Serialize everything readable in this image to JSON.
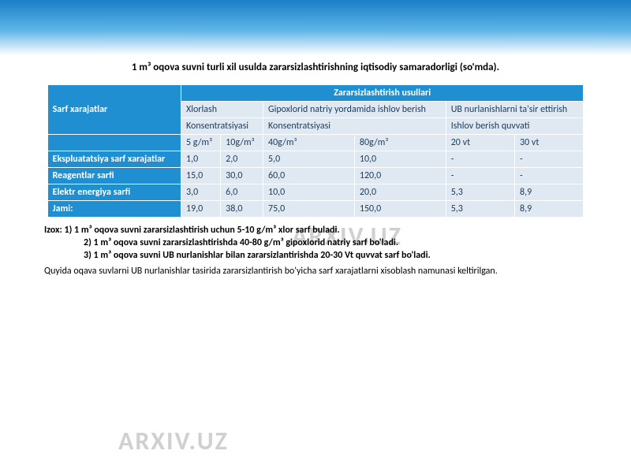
{
  "watermark": "ARXIV.UZ",
  "title": "1 m³  oqova suvni turli xil  usulda zararsizlashtirishning iqtisodiy samaradorligi  (so'mda).",
  "table": {
    "header_main": "Zararsizlashtirish usullari",
    "row_label": "Sarf xarajatlar",
    "methods": {
      "m1": "Xlorlash",
      "m2": "Gipoxlorid natriy yordamida ishlov berish",
      "m3": "UB nurlanishlarni ta'sir ettirish",
      "sub1": "Konsentratsiyasi",
      "sub2": "Konsentratsiyasi",
      "sub3": "Ishlov berish quvvati",
      "c1": "5 g/m³",
      "c2": "10g/m³",
      "c3": "40g/m³",
      "c4": "80g/m³",
      "c5": "20 vt",
      "c6": "30 vt"
    },
    "rows": [
      {
        "label": "Ekspluatatsiya  sarf xarajatlar",
        "v": [
          "1,0",
          "2,0",
          "5,0",
          "10,0",
          "-",
          "-"
        ]
      },
      {
        "label": "Reagentlar sarfi",
        "v": [
          "15,0",
          "30,0",
          "60,0",
          "120,0",
          "-",
          "-"
        ]
      },
      {
        "label": "Elektr energiya sarfi",
        "v": [
          "3,0",
          "6,0",
          "10,0",
          "20,0",
          "5,3",
          "8,9"
        ]
      },
      {
        "label": "Jami:",
        "v": [
          "19,0",
          "38,0",
          "75,0",
          "150,0",
          "5,3",
          "8,9"
        ]
      }
    ]
  },
  "notes": {
    "l1": "Izox: 1)  1 m³  oqova suvni zararsizlashtirish uchun 5-10 g/m³ xlor sarf buladi.",
    "l2": "2) 1 m³  oqova suvni zararsizlashtirishda  40-80 g/m³  gipoxlorid natriy sarf bo'ladi.",
    "l3": "3) 1 m³  oqova suvni UB nurlanishlar bilan zararsizlantirishda 20-30 Vt quvvat sarf bo'ladi.",
    "l4": "Quyida oqava suvlarni  UB nurlanishlar tasirida zararsizlantirish bo'yicha sarf xarajatlarni xisoblash namunasi keltirilgan."
  },
  "colors": {
    "gradient_top": "#1a7fc6",
    "gradient_mid": "#5fb5e8",
    "header_blue": "#1f8fd1",
    "cell_light": "#e0e9f2",
    "watermark": "#d0d0d0"
  }
}
